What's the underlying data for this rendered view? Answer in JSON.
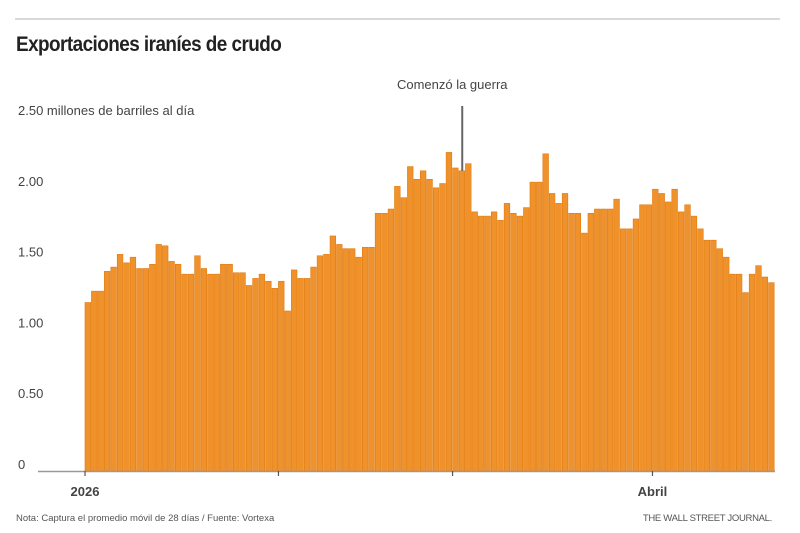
{
  "chart_data": {
    "type": "bar",
    "title": "Exportaciones iraníes de crudo",
    "ylabel": "millones de barriles al día",
    "ylim": [
      0,
      2.5
    ],
    "yticks": [
      {
        "value": 0,
        "label": "0"
      },
      {
        "value": 0.5,
        "label": "0.50"
      },
      {
        "value": 1.0,
        "label": "1.00"
      },
      {
        "value": 1.5,
        "label": "1.50"
      },
      {
        "value": 2.0,
        "label": "2.00"
      },
      {
        "value": 2.5,
        "label": "2.50 millones de barriles al día"
      }
    ],
    "xticks": [
      {
        "index": 0,
        "label": "2026"
      },
      {
        "index": 30,
        "label": ""
      },
      {
        "index": 57,
        "label": ""
      },
      {
        "index": 88,
        "label": "Abril"
      }
    ],
    "annotation": {
      "index": 58,
      "label": "Comenzó la guerra"
    },
    "bar_color": "#f0922b",
    "values": [
      1.19,
      1.27,
      1.27,
      1.41,
      1.44,
      1.53,
      1.47,
      1.51,
      1.43,
      1.43,
      1.46,
      1.6,
      1.59,
      1.48,
      1.46,
      1.39,
      1.39,
      1.52,
      1.43,
      1.39,
      1.39,
      1.46,
      1.46,
      1.4,
      1.4,
      1.31,
      1.36,
      1.39,
      1.34,
      1.29,
      1.34,
      1.13,
      1.42,
      1.36,
      1.36,
      1.44,
      1.52,
      1.53,
      1.66,
      1.6,
      1.57,
      1.57,
      1.51,
      1.58,
      1.58,
      1.82,
      1.82,
      1.85,
      2.01,
      1.93,
      2.15,
      2.06,
      2.12,
      2.06,
      2.0,
      2.03,
      2.25,
      2.14,
      2.12,
      2.17,
      1.83,
      1.8,
      1.8,
      1.83,
      1.77,
      1.89,
      1.82,
      1.8,
      1.86,
      2.04,
      2.04,
      2.24,
      1.96,
      1.89,
      1.96,
      1.82,
      1.82,
      1.68,
      1.82,
      1.85,
      1.85,
      1.85,
      1.92,
      1.71,
      1.71,
      1.78,
      1.88,
      1.88,
      1.99,
      1.96,
      1.9,
      1.99,
      1.83,
      1.88,
      1.8,
      1.71,
      1.63,
      1.63,
      1.57,
      1.51,
      1.39,
      1.39,
      1.26,
      1.39,
      1.45,
      1.37,
      1.33
    ]
  },
  "footer": {
    "note": "Nota: Captura el promedio móvil de 28 días  / Fuente: Vortexa",
    "brand": "THE WALL STREET JOURNAL."
  }
}
